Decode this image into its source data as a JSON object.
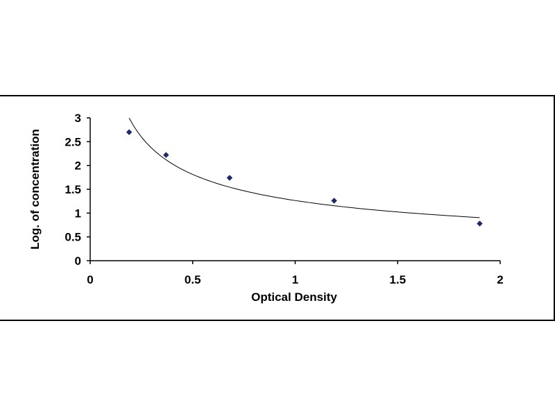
{
  "chart_data": {
    "type": "scatter",
    "title": "",
    "xlabel": "Optical Density",
    "ylabel": "Log. of concentration",
    "xlim": [
      0,
      2
    ],
    "ylim": [
      0,
      3
    ],
    "x_ticks": [
      "0",
      "0.5",
      "1",
      "1.5",
      "2"
    ],
    "y_ticks": [
      "0",
      "0.5",
      "1",
      "1.5",
      "2",
      "2.5",
      "3"
    ],
    "grid": false,
    "legend": "none",
    "series": [
      {
        "marker": "diamond",
        "color": "#1f2a6b",
        "x": [
          0.19,
          0.37,
          0.68,
          1.19,
          1.9
        ],
        "y": [
          2.7,
          2.22,
          1.74,
          1.26,
          0.78
        ]
      }
    ],
    "trendline": {
      "type": "power fit",
      "color": "#000000"
    }
  }
}
